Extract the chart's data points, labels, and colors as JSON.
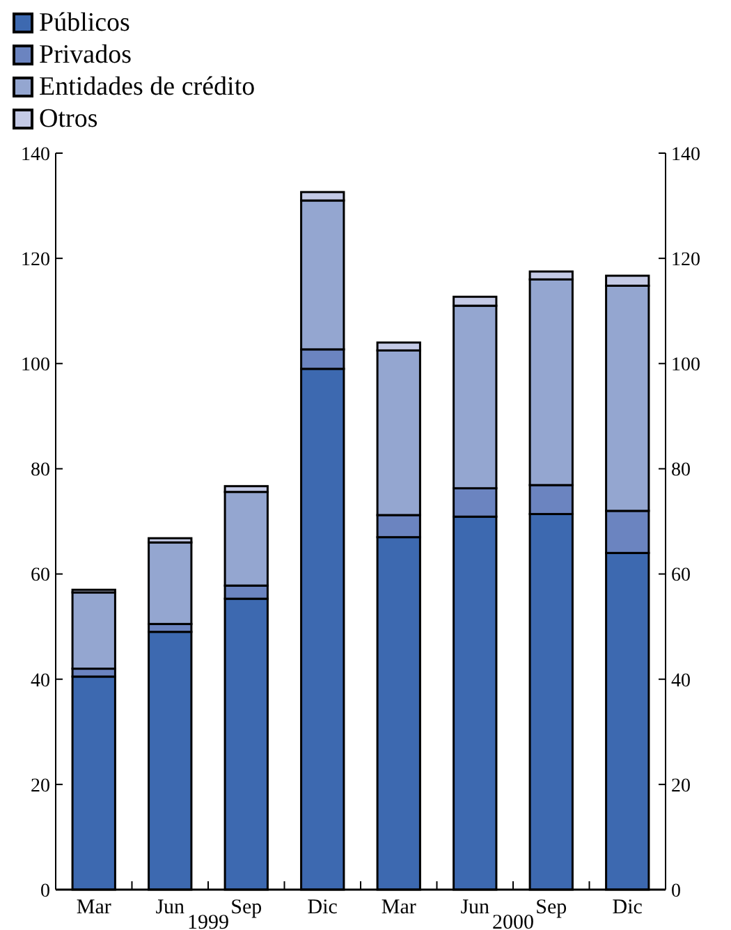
{
  "chart_data": {
    "type": "bar",
    "stacked": true,
    "categories": [
      "Mar",
      "Jun",
      "Sep",
      "Dic",
      "Mar",
      "Jun",
      "Sep",
      "Dic"
    ],
    "series": [
      {
        "name": "Públicos",
        "color": "#3d69b0",
        "values": [
          40.5,
          49,
          55.3,
          99,
          67,
          70.9,
          71.4,
          64
        ]
      },
      {
        "name": "Privados",
        "color": "#6b84c0",
        "values": [
          1.5,
          1.5,
          2.5,
          3.7,
          4.2,
          5.4,
          5.5,
          8
        ]
      },
      {
        "name": "Entidades de crédito",
        "color": "#94a6d0",
        "values": [
          14.5,
          15.5,
          17.8,
          28.3,
          31.3,
          34.7,
          39.1,
          42.8
        ]
      },
      {
        "name": "Otros",
        "color": "#c4cae6",
        "values": [
          0.5,
          0.8,
          1.1,
          1.6,
          1.5,
          1.7,
          1.5,
          1.9
        ]
      }
    ],
    "ylim": [
      0,
      140
    ],
    "yticks": [
      0,
      20,
      40,
      60,
      80,
      100,
      120,
      140
    ],
    "y2lim": [
      0,
      140
    ],
    "y2ticks": [
      0,
      20,
      40,
      60,
      80,
      100,
      120,
      140
    ],
    "annotations": [
      "1999",
      "2000"
    ],
    "legend": "top left",
    "grid": false
  }
}
